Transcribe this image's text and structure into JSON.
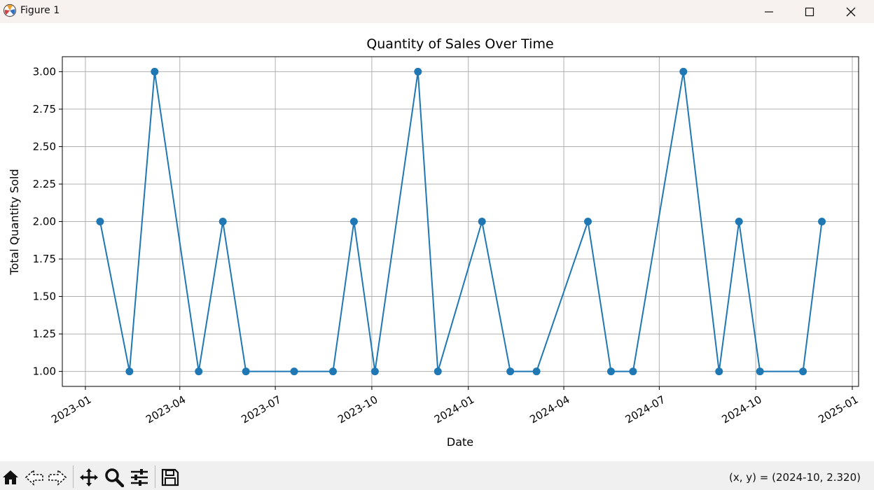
{
  "window": {
    "title": "Figure 1",
    "icons": [
      "matplotlib-logo-icon",
      "minimize-icon",
      "maximize-icon",
      "close-icon"
    ]
  },
  "toolbar": {
    "icons": [
      "home-icon",
      "back-arrow-icon",
      "forward-arrow-icon",
      "pan-move-icon",
      "zoom-magnifier-icon",
      "configure-subplots-icon",
      "save-disk-icon"
    ],
    "coords": "(x, y) = (2024-10, 2.320)"
  },
  "colors": {
    "line": "#1f77b4",
    "grid": "#b0b0b0",
    "titlebar": "#f7f1ef",
    "toolbar": "#f0f0f0"
  },
  "chart_data": {
    "type": "line",
    "title": "Quantity of Sales Over Time",
    "xlabel": "Date",
    "ylabel": "Total Quantity Sold",
    "marker": "circle",
    "grid": true,
    "x_ticks": [
      "2023-01",
      "2023-04",
      "2023-07",
      "2023-10",
      "2024-01",
      "2024-04",
      "2024-07",
      "2024-10",
      "2025-01"
    ],
    "y_ticks": [
      "1.00",
      "1.25",
      "1.50",
      "1.75",
      "2.00",
      "2.25",
      "2.50",
      "2.75",
      "3.00"
    ],
    "xlim": [
      "2022-12-10",
      "2025-01-07"
    ],
    "ylim": [
      0.9,
      3.1
    ],
    "x": [
      "2023-01-15",
      "2023-02-12",
      "2023-03-08",
      "2023-04-19",
      "2023-05-12",
      "2023-06-03",
      "2023-07-19",
      "2023-08-25",
      "2023-09-14",
      "2023-10-04",
      "2023-11-14",
      "2023-12-03",
      "2024-01-14",
      "2024-02-10",
      "2024-03-06",
      "2024-04-24",
      "2024-05-16",
      "2024-06-06",
      "2024-07-24",
      "2024-08-27",
      "2024-09-15",
      "2024-10-05",
      "2024-11-15",
      "2024-12-03"
    ],
    "values": [
      2,
      1,
      3,
      1,
      2,
      1,
      1,
      1,
      2,
      1,
      3,
      1,
      2,
      1,
      1,
      2,
      1,
      1,
      3,
      1,
      2,
      1,
      1,
      2
    ]
  }
}
